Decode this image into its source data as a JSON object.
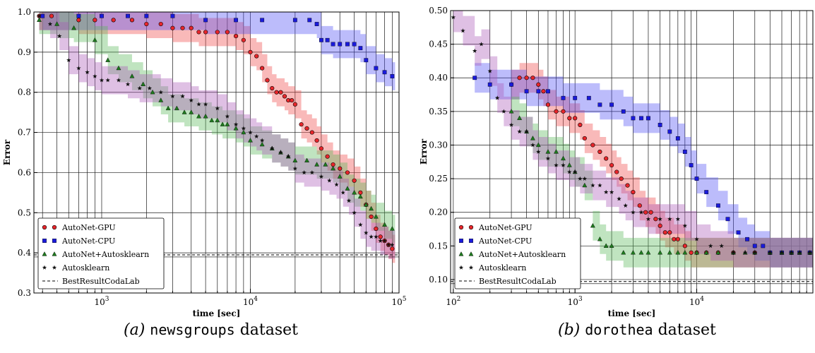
{
  "captions": [
    {
      "label": "(a)",
      "name": "newsgroups",
      "suffix": "dataset"
    },
    {
      "label": "(b)",
      "name": "dorothea",
      "suffix": "dataset"
    }
  ],
  "chart_data": [
    {
      "type": "scatter",
      "xscale": "log",
      "xlabel": "time [sec]",
      "ylabel": "Error",
      "xlim": [
        350,
        100000
      ],
      "ylim": [
        0.3,
        1.0
      ],
      "yticks": [
        "0.3",
        "0.4",
        "0.5",
        "0.6",
        "0.7",
        "0.8",
        "0.9",
        "1.0"
      ],
      "xticks": [
        "10^3",
        "10^4",
        "10^5"
      ],
      "grid": true,
      "legend": "lower-left",
      "series": [
        {
          "name": "AutoNet-GPU",
          "marker": "circle",
          "color": "#e8262b",
          "x": [
            380,
            460,
            700,
            900,
            1200,
            1600,
            2000,
            2500,
            3000,
            3500,
            4000,
            4500,
            5000,
            6000,
            7000,
            8000,
            9000,
            10000,
            11000,
            12000,
            13000,
            14000,
            15000,
            16000,
            17000,
            18000,
            19000,
            20000,
            22000,
            24000,
            26000,
            28000,
            30000,
            33000,
            36000,
            40000,
            45000,
            50000,
            55000,
            60000,
            65000,
            70000,
            75000,
            80000,
            85000,
            90000
          ],
          "y": [
            0.99,
            0.99,
            0.98,
            0.98,
            0.98,
            0.98,
            0.97,
            0.97,
            0.96,
            0.96,
            0.96,
            0.95,
            0.95,
            0.95,
            0.95,
            0.94,
            0.93,
            0.9,
            0.89,
            0.86,
            0.83,
            0.81,
            0.8,
            0.8,
            0.79,
            0.78,
            0.78,
            0.77,
            0.72,
            0.71,
            0.7,
            0.68,
            0.66,
            0.64,
            0.62,
            0.61,
            0.6,
            0.58,
            0.55,
            0.52,
            0.49,
            0.46,
            0.44,
            0.43,
            0.42,
            0.41
          ]
        },
        {
          "name": "AutoNet-CPU",
          "marker": "square",
          "color": "#1a1adb",
          "x": [
            400,
            700,
            1000,
            1500,
            2000,
            3000,
            5000,
            8000,
            12000,
            20000,
            25000,
            28000,
            30000,
            33000,
            36000,
            40000,
            45000,
            50000,
            55000,
            60000,
            70000,
            80000,
            90000
          ],
          "y": [
            0.99,
            0.99,
            0.99,
            0.99,
            0.99,
            0.99,
            0.98,
            0.98,
            0.98,
            0.98,
            0.98,
            0.97,
            0.93,
            0.93,
            0.92,
            0.92,
            0.92,
            0.92,
            0.91,
            0.88,
            0.86,
            0.85,
            0.84
          ]
        },
        {
          "name": "AutoNet+Autosklearn",
          "marker": "triangle",
          "color": "#1e7a1e",
          "x": [
            380,
            500,
            650,
            900,
            1100,
            1300,
            1600,
            1900,
            2200,
            2500,
            2800,
            3200,
            3600,
            4000,
            4500,
            5000,
            5500,
            6000,
            6500,
            7000,
            8000,
            9000,
            10000,
            12000,
            14000,
            16000,
            18000,
            20000,
            24000,
            28000,
            32000,
            36000,
            40000,
            45000,
            50000,
            55000,
            60000,
            65000,
            70000,
            80000,
            90000
          ],
          "y": [
            0.98,
            0.97,
            0.96,
            0.93,
            0.88,
            0.86,
            0.84,
            0.82,
            0.8,
            0.78,
            0.76,
            0.76,
            0.75,
            0.75,
            0.74,
            0.74,
            0.73,
            0.73,
            0.72,
            0.72,
            0.71,
            0.7,
            0.68,
            0.67,
            0.66,
            0.65,
            0.64,
            0.63,
            0.63,
            0.62,
            0.62,
            0.61,
            0.59,
            0.56,
            0.55,
            0.54,
            0.52,
            0.51,
            0.49,
            0.47,
            0.46
          ]
        },
        {
          "name": "Autosklearn",
          "marker": "star",
          "color": "#111111",
          "x": [
            380,
            450,
            520,
            600,
            700,
            800,
            900,
            1000,
            1100,
            1300,
            1500,
            1800,
            2100,
            2500,
            3000,
            3500,
            4000,
            4500,
            5000,
            6000,
            7000,
            8000,
            9000,
            10000,
            11000,
            12000,
            14000,
            16000,
            18000,
            20000,
            23000,
            26000,
            30000,
            34000,
            38000,
            42000,
            46000,
            50000,
            55000,
            60000,
            65000,
            70000,
            75000,
            80000,
            85000,
            90000
          ],
          "y": [
            0.99,
            0.97,
            0.94,
            0.88,
            0.86,
            0.85,
            0.84,
            0.83,
            0.83,
            0.83,
            0.82,
            0.81,
            0.81,
            0.8,
            0.79,
            0.79,
            0.78,
            0.77,
            0.77,
            0.76,
            0.74,
            0.72,
            0.71,
            0.7,
            0.69,
            0.68,
            0.66,
            0.65,
            0.64,
            0.61,
            0.6,
            0.6,
            0.59,
            0.58,
            0.57,
            0.55,
            0.53,
            0.5,
            0.47,
            0.45,
            0.44,
            0.44,
            0.43,
            0.43,
            0.42,
            0.42
          ]
        },
        {
          "name": "BestResultCodaLab",
          "line": "dashed",
          "color": "#000000",
          "y": 0.395
        }
      ]
    },
    {
      "type": "scatter",
      "xscale": "log",
      "xlabel": "time [sec]",
      "ylabel": "Error",
      "xlim": [
        95,
        90000
      ],
      "ylim": [
        0.08,
        0.5
      ],
      "yticks": [
        "0.10",
        "0.15",
        "0.20",
        "0.25",
        "0.30",
        "0.35",
        "0.40",
        "0.45",
        "0.50"
      ],
      "xticks": [
        "10^2",
        "10^3",
        "10^4"
      ],
      "grid": true,
      "legend": "lower-left",
      "series": [
        {
          "name": "AutoNet-GPU",
          "marker": "circle",
          "color": "#e8262b",
          "x": [
            300,
            350,
            400,
            450,
            500,
            550,
            600,
            700,
            800,
            900,
            1000,
            1100,
            1200,
            1400,
            1600,
            1800,
            2000,
            2200,
            2400,
            2700,
            3000,
            3400,
            3800,
            4200,
            4600,
            5000,
            5500,
            6000,
            6500,
            7000,
            8000,
            9000,
            10000,
            12000,
            15000,
            20000,
            30000,
            40000,
            60000,
            85000
          ],
          "y": [
            0.39,
            0.4,
            0.4,
            0.4,
            0.39,
            0.38,
            0.36,
            0.35,
            0.35,
            0.34,
            0.34,
            0.33,
            0.31,
            0.3,
            0.29,
            0.28,
            0.27,
            0.26,
            0.25,
            0.24,
            0.23,
            0.21,
            0.2,
            0.2,
            0.19,
            0.18,
            0.17,
            0.17,
            0.16,
            0.16,
            0.15,
            0.14,
            0.14,
            0.14,
            0.14,
            0.14,
            0.14,
            0.14,
            0.14,
            0.14
          ]
        },
        {
          "name": "AutoNet-CPU",
          "marker": "square",
          "color": "#1a1adb",
          "x": [
            150,
            200,
            300,
            400,
            500,
            600,
            800,
            1000,
            1300,
            1600,
            2000,
            2500,
            3000,
            3500,
            4000,
            5000,
            6000,
            7000,
            8000,
            9000,
            10000,
            12000,
            15000,
            18000,
            22000,
            26000,
            30000,
            35000,
            40000,
            50000,
            60000,
            70000,
            85000
          ],
          "y": [
            0.4,
            0.39,
            0.39,
            0.38,
            0.38,
            0.38,
            0.37,
            0.37,
            0.37,
            0.36,
            0.36,
            0.35,
            0.34,
            0.34,
            0.34,
            0.33,
            0.32,
            0.31,
            0.29,
            0.27,
            0.25,
            0.23,
            0.21,
            0.19,
            0.17,
            0.16,
            0.15,
            0.15,
            0.14,
            0.14,
            0.14,
            0.14,
            0.14
          ]
        },
        {
          "name": "AutoNet+Autosklearn",
          "marker": "triangle",
          "color": "#1e7a1e",
          "x": [
            300,
            350,
            400,
            450,
            500,
            600,
            700,
            800,
            900,
            1000,
            1200,
            1400,
            1600,
            1800,
            2000,
            2500,
            3000,
            3500,
            4000,
            5000,
            6000,
            7000,
            8000,
            10000,
            12000,
            15000,
            20000,
            25000,
            30000,
            40000,
            50000,
            60000,
            70000,
            85000
          ],
          "y": [
            0.35,
            0.34,
            0.32,
            0.31,
            0.3,
            0.29,
            0.29,
            0.28,
            0.27,
            0.26,
            0.24,
            0.18,
            0.16,
            0.15,
            0.15,
            0.14,
            0.14,
            0.14,
            0.14,
            0.14,
            0.14,
            0.14,
            0.14,
            0.14,
            0.14,
            0.14,
            0.14,
            0.14,
            0.14,
            0.14,
            0.14,
            0.14,
            0.14,
            0.14
          ]
        },
        {
          "name": "Autosklearn",
          "marker": "star",
          "color": "#111111",
          "x": [
            100,
            120,
            150,
            170,
            200,
            230,
            260,
            300,
            350,
            400,
            450,
            500,
            600,
            700,
            800,
            900,
            1000,
            1100,
            1200,
            1400,
            1600,
            1800,
            2000,
            2300,
            2600,
            3000,
            3500,
            4000,
            5000,
            6000,
            7000,
            8000,
            10000,
            13000,
            16000,
            20000,
            25000,
            30000,
            40000,
            50000,
            60000,
            70000,
            85000
          ],
          "y": [
            0.49,
            0.47,
            0.44,
            0.45,
            0.41,
            0.37,
            0.35,
            0.33,
            0.32,
            0.32,
            0.3,
            0.29,
            0.28,
            0.27,
            0.27,
            0.26,
            0.26,
            0.25,
            0.25,
            0.24,
            0.24,
            0.23,
            0.23,
            0.22,
            0.21,
            0.2,
            0.2,
            0.19,
            0.19,
            0.19,
            0.19,
            0.18,
            0.16,
            0.15,
            0.15,
            0.14,
            0.14,
            0.14,
            0.14,
            0.14,
            0.14,
            0.14,
            0.14
          ]
        },
        {
          "name": "BestResultCodaLab",
          "line": "dashed",
          "color": "#000000",
          "y": 0.097
        }
      ]
    }
  ]
}
